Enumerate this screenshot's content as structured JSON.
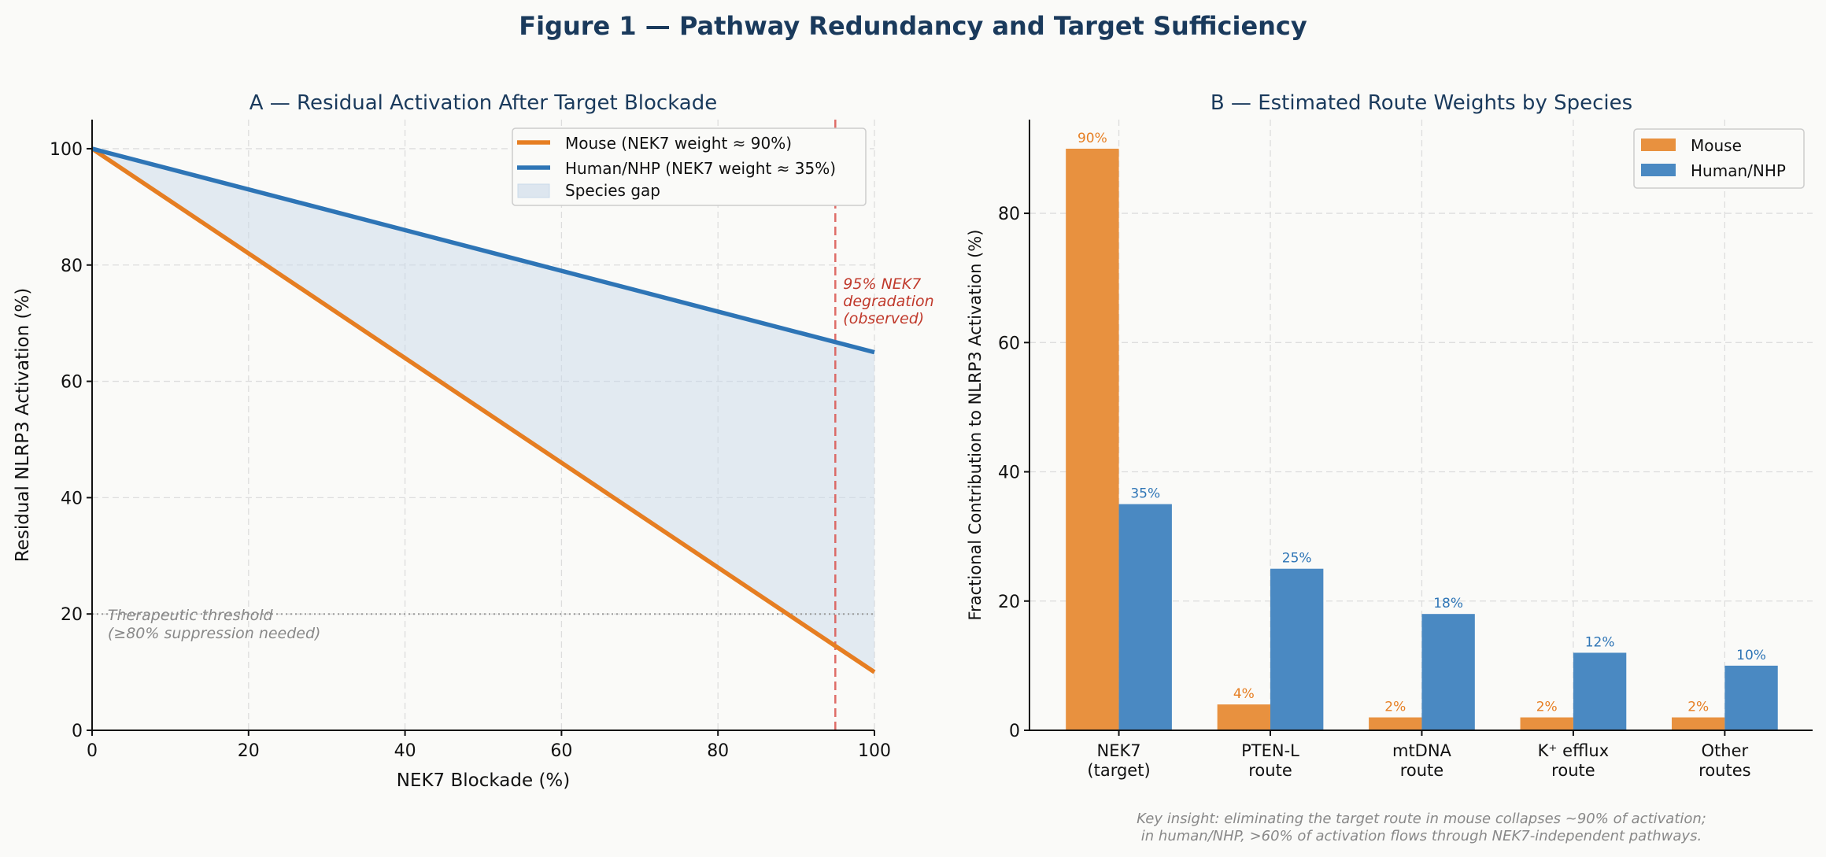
{
  "figure_title": "Figure 1 — Pathway Redundancy and Target Sufficiency",
  "colors": {
    "title": "#1a3a5c",
    "mouse_line": "#e67e22",
    "human_line": "#2e75b6",
    "mouse_bar": "#e8913f",
    "human_bar": "#4a89c2",
    "gap_fill": "#c9d9ea",
    "vline": "#d9534f",
    "threshold": "#999999"
  },
  "chart_data": [
    {
      "type": "line",
      "title": "A — Residual Activation After Target Blockade",
      "xlabel": "NEK7 Blockade (%)",
      "ylabel": "Residual NLRP3 Activation (%)",
      "xlim": [
        0,
        100
      ],
      "ylim": [
        0,
        105
      ],
      "xticks": [
        0,
        20,
        40,
        60,
        80,
        100
      ],
      "yticks": [
        0,
        20,
        40,
        60,
        80,
        100
      ],
      "grid": true,
      "legend_position": "top-right",
      "series": [
        {
          "name": "Mouse  (NEK7 weight ≈ 90%)",
          "x": [
            0,
            100
          ],
          "y": [
            100,
            10
          ]
        },
        {
          "name": "Human/NHP  (NEK7 weight ≈ 35%)",
          "x": [
            0,
            100
          ],
          "y": [
            100,
            65
          ]
        }
      ],
      "fill_label": "Species gap",
      "threshold": {
        "y": 20,
        "label_line1": "Therapeutic threshold",
        "label_line2": "(≥80% suppression needed)"
      },
      "vline": {
        "x": 95,
        "label_line1": "95% NEK7",
        "label_line2": "degradation",
        "label_line3": "(observed)"
      }
    },
    {
      "type": "bar",
      "title": "B — Estimated Route Weights by Species",
      "ylabel": "Fractional Contribution to NLRP3 Activation (%)",
      "ylim": [
        0,
        94.5
      ],
      "yticks": [
        0,
        20,
        40,
        60,
        80
      ],
      "grid": true,
      "legend_position": "top-right",
      "categories": [
        [
          "NEK7",
          "(target)"
        ],
        [
          "PTEN-L",
          "route"
        ],
        [
          "mtDNA",
          "route"
        ],
        [
          "K⁺ efflux",
          "route"
        ],
        [
          "Other",
          "routes"
        ]
      ],
      "series": [
        {
          "name": "Mouse",
          "values": [
            90,
            4,
            2,
            2,
            2
          ],
          "labels": [
            "90%",
            "4%",
            "2%",
            "2%",
            "2%"
          ]
        },
        {
          "name": "Human/NHP",
          "values": [
            35,
            25,
            18,
            12,
            10
          ],
          "labels": [
            "35%",
            "25%",
            "18%",
            "12%",
            "10%"
          ]
        }
      ]
    }
  ],
  "footnote": {
    "line1": "Key insight: eliminating the target route in mouse collapses ~90% of activation;",
    "line2": "in human/NHP, >60% of activation flows through NEK7-independent pathways."
  }
}
